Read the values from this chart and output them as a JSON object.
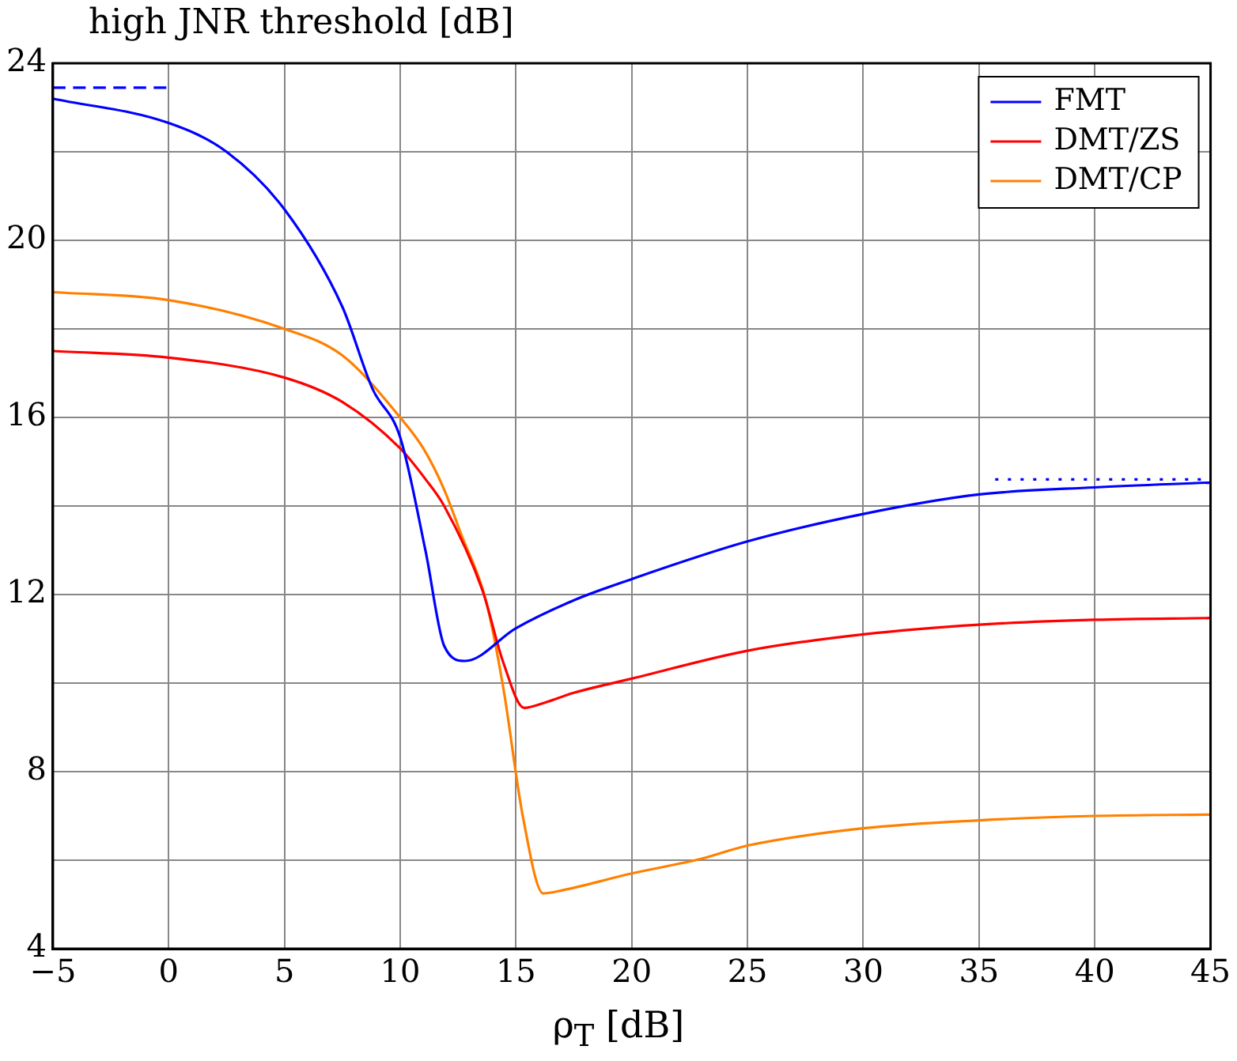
{
  "chart_data": {
    "type": "line",
    "ylabel": "high JNR threshold  [dB]",
    "xlabel": "ρ$_{T}$ [dB]",
    "xlim": [
      -5,
      45
    ],
    "xticks": [
      -5,
      0,
      5,
      10,
      15,
      20,
      25,
      30,
      35,
      40,
      45
    ],
    "ylim": [
      4,
      24
    ],
    "yticks": [
      4,
      {
        "value": 6,
        "label": null
      },
      8,
      {
        "value": 10,
        "label": null
      },
      12,
      {
        "value": 14,
        "label": null
      },
      16,
      {
        "value": 18,
        "label": null
      },
      20,
      {
        "value": 22,
        "label": null
      },
      24
    ],
    "grid": true,
    "legend": "top right",
    "marker": "none",
    "series": [
      {
        "name": "FMT",
        "color": "#0000ff",
        "x": [
          -5,
          0,
          2.5,
          5,
          7.5,
          8.8,
          10,
          11.1,
          11.9,
          12.8,
          15,
          17.5,
          20,
          25,
          30,
          35,
          40,
          45
        ],
        "values": [
          23.2,
          22.65,
          22.0,
          20.7,
          18.5,
          16.65,
          15.55,
          12.97,
          10.84,
          10.5,
          11.24,
          11.87,
          12.35,
          13.2,
          13.82,
          14.26,
          14.42,
          14.53
        ]
      },
      {
        "name": "DMT/ZS",
        "color": "#ff0000",
        "x": [
          -5,
          0,
          5,
          7.5,
          10,
          11.1,
          11.9,
          13.55,
          14.45,
          15.36,
          16.2,
          17.5,
          20,
          25,
          30,
          35,
          40,
          45
        ],
        "values": [
          17.5,
          17.35,
          16.9,
          16.35,
          15.3,
          14.6,
          14.0,
          12.1,
          10.47,
          9.44,
          9.55,
          9.78,
          10.1,
          10.73,
          11.1,
          11.32,
          11.43,
          11.47
        ]
      },
      {
        "name": "DMT/CP",
        "color": "#ff8000",
        "x": [
          -5,
          0,
          5,
          7.5,
          10,
          11,
          11.9,
          12.64,
          13.7,
          14.45,
          15.3,
          16.18,
          17,
          20,
          23,
          25,
          30,
          35,
          40,
          45
        ],
        "values": [
          18.83,
          18.65,
          18.0,
          17.4,
          16.0,
          15.3,
          14.37,
          13.35,
          11.87,
          9.9,
          6.98,
          5.25,
          5.32,
          5.7,
          6.03,
          6.33,
          6.72,
          6.9,
          7.0,
          7.03
        ]
      },
      {
        "type": "line",
        "line_style": "dashed",
        "color": "#0000ff",
        "x": [
          -5,
          0
        ],
        "values": [
          23.45,
          23.45
        ]
      },
      {
        "type": "line",
        "line_style": "dotted",
        "color": "#0000ff",
        "x": [
          35.7,
          45
        ],
        "values": [
          14.6,
          14.6
        ]
      }
    ]
  }
}
